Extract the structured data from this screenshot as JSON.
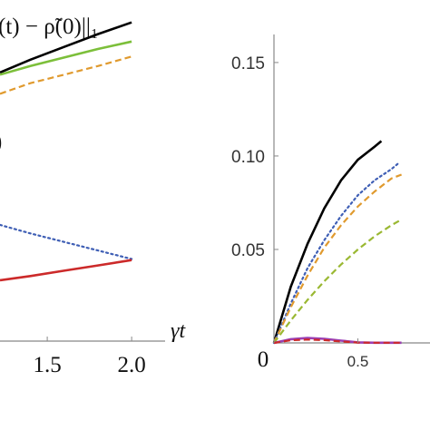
{
  "chart_data": [
    {
      "type": "line",
      "panel": "left",
      "title": "(t) − ρ̃(0)||₁",
      "xlabel": "γt",
      "ylabel": "",
      "xlim": [
        1.22,
        2.08
      ],
      "ylim": [
        0,
        0.16
      ],
      "x_ticks": [
        {
          "value": 1.5,
          "label": "1.5"
        },
        {
          "value": 2.0,
          "label": "2.0"
        }
      ],
      "annotations": [
        {
          "text": ")",
          "x": 1.22,
          "y": 0.103
        }
      ],
      "series": [
        {
          "color": "#000000",
          "style": "solid",
          "points": [
            [
              1.22,
              0.126
            ],
            [
              1.4,
              0.132
            ],
            [
              1.6,
              0.138
            ],
            [
              1.8,
              0.144
            ],
            [
              2.0,
              0.1495
            ]
          ]
        },
        {
          "color": "#7cbf3a",
          "style": "solid",
          "points": [
            [
              1.22,
              0.125
            ],
            [
              1.4,
              0.129
            ],
            [
              1.6,
              0.133
            ],
            [
              1.8,
              0.137
            ],
            [
              2.0,
              0.1405
            ]
          ]
        },
        {
          "color": "#e09a2e",
          "style": "dashed",
          "points": [
            [
              1.22,
              0.116
            ],
            [
              1.4,
              0.121
            ],
            [
              1.6,
              0.125
            ],
            [
              1.8,
              0.129
            ],
            [
              2.0,
              0.1335
            ]
          ]
        },
        {
          "color": "#3f5fb5",
          "style": "dotted",
          "points": [
            [
              1.22,
              0.0545
            ],
            [
              1.4,
              0.0505
            ],
            [
              1.6,
              0.0465
            ],
            [
              1.8,
              0.0425
            ],
            [
              2.0,
              0.0385
            ]
          ]
        },
        {
          "color": "#cc2a2a",
          "style": "solid",
          "points": [
            [
              1.22,
              0.0285
            ],
            [
              1.4,
              0.0305
            ],
            [
              1.6,
              0.033
            ],
            [
              1.8,
              0.0355
            ],
            [
              2.0,
              0.038
            ]
          ]
        }
      ]
    },
    {
      "type": "line",
      "panel": "right",
      "xlabel": "",
      "ylabel": "",
      "xlim": [
        0,
        0.93
      ],
      "ylim": [
        0,
        0.165
      ],
      "x_ticks": [
        {
          "value": 0,
          "label": "0"
        },
        {
          "value": 0.5,
          "label": "0.5"
        }
      ],
      "y_ticks": [
        {
          "value": 0.05,
          "label": "0.05"
        },
        {
          "value": 0.1,
          "label": "0.10"
        },
        {
          "value": 0.15,
          "label": "0.15"
        }
      ],
      "series": [
        {
          "color": "#000000",
          "style": "solid",
          "points": [
            [
              0,
              0
            ],
            [
              0.1,
              0.03
            ],
            [
              0.2,
              0.053
            ],
            [
              0.3,
              0.072
            ],
            [
              0.4,
              0.087
            ],
            [
              0.5,
              0.098
            ],
            [
              0.6,
              0.105
            ],
            [
              0.64,
              0.108
            ]
          ]
        },
        {
          "color": "#3f5fb5",
          "style": "dotted",
          "points": [
            [
              0,
              0
            ],
            [
              0.1,
              0.021
            ],
            [
              0.2,
              0.04
            ],
            [
              0.3,
              0.055
            ],
            [
              0.4,
              0.068
            ],
            [
              0.5,
              0.079
            ],
            [
              0.6,
              0.087
            ],
            [
              0.7,
              0.093
            ],
            [
              0.74,
              0.096
            ]
          ]
        },
        {
          "color": "#e09a2e",
          "style": "dashed",
          "points": [
            [
              0,
              0
            ],
            [
              0.1,
              0.019
            ],
            [
              0.2,
              0.036
            ],
            [
              0.3,
              0.051
            ],
            [
              0.4,
              0.063
            ],
            [
              0.5,
              0.073
            ],
            [
              0.6,
              0.081
            ],
            [
              0.7,
              0.088
            ],
            [
              0.76,
              0.09
            ]
          ]
        },
        {
          "color": "#9ab832",
          "style": "dashed",
          "points": [
            [
              0,
              0
            ],
            [
              0.1,
              0.012
            ],
            [
              0.2,
              0.023
            ],
            [
              0.3,
              0.033
            ],
            [
              0.4,
              0.042
            ],
            [
              0.5,
              0.05
            ],
            [
              0.6,
              0.057
            ],
            [
              0.7,
              0.063
            ],
            [
              0.76,
              0.066
            ]
          ]
        },
        {
          "color": "#9a3fb5",
          "style": "solid",
          "points": [
            [
              0,
              0
            ],
            [
              0.1,
              0.002
            ],
            [
              0.2,
              0.0026
            ],
            [
              0.3,
              0.0022
            ],
            [
              0.4,
              0.0012
            ],
            [
              0.5,
              0.0003
            ],
            [
              0.6,
              0.0001
            ],
            [
              0.76,
              0.0001
            ]
          ]
        },
        {
          "color": "#cc2a2a",
          "style": "dashed",
          "points": [
            [
              0,
              0
            ],
            [
              0.1,
              0.0014
            ],
            [
              0.2,
              0.0018
            ],
            [
              0.3,
              0.0015
            ],
            [
              0.4,
              0.0008
            ],
            [
              0.5,
              0.0002
            ],
            [
              0.6,
              0.0001
            ],
            [
              0.76,
              0.0001
            ]
          ]
        }
      ]
    }
  ]
}
